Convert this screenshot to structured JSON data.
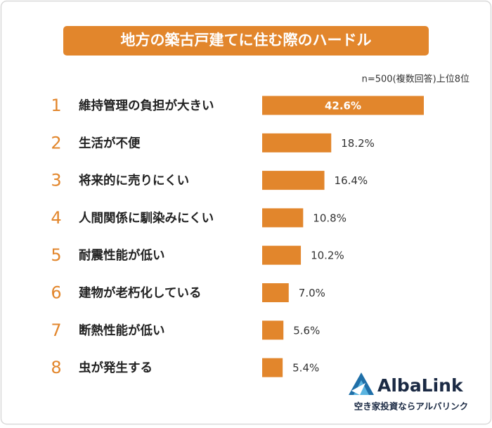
{
  "chart_data": {
    "type": "bar",
    "orientation": "horizontal",
    "title": "地方の築古戸建てに住む際のハードル",
    "subtitle": "n=500(複数回答)上位8位",
    "ranks": [
      1,
      2,
      3,
      4,
      5,
      6,
      7,
      8
    ],
    "categories": [
      "維持管理の負担が大きい",
      "生活が不便",
      "将来的に売りにくい",
      "人間関係に馴染みにくい",
      "耐震性能が低い",
      "建物が老朽化している",
      "断熱性能が低い",
      "虫が発生する"
    ],
    "values": [
      42.6,
      18.2,
      16.4,
      10.8,
      10.2,
      7.0,
      5.6,
      5.4
    ],
    "value_labels": [
      "42.6%",
      "18.2%",
      "16.4%",
      "10.8%",
      "10.2%",
      "7.0%",
      "5.6%",
      "5.4%"
    ],
    "color": "#e2862c",
    "logo": {
      "name": "AlbaLink",
      "tagline": "空き家投資ならアルバリンク"
    }
  }
}
